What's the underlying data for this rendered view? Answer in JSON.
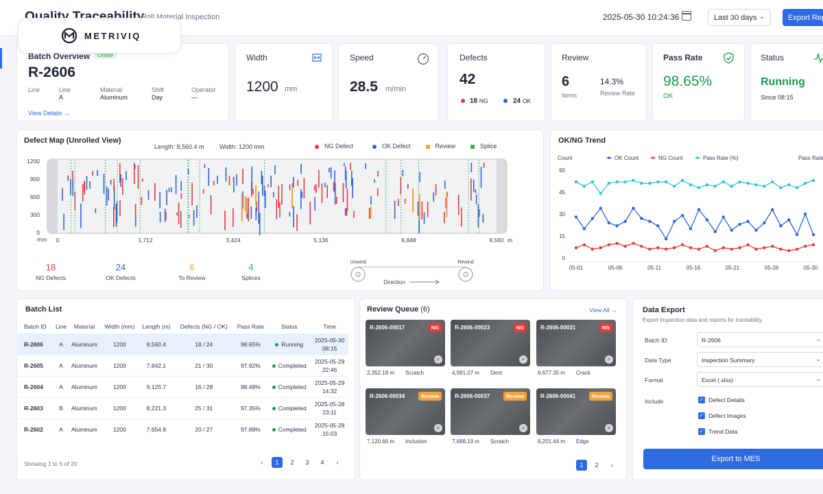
{
  "header": {
    "title": "Quality Traceability",
    "subtitle": "Roll Material Inspection",
    "datetime": "2025-05-30 10:24:36",
    "range": "Last 30 days",
    "export": "Export Report"
  },
  "brand": {
    "name": "METRIVIQ",
    "icon": "m-logo-icon"
  },
  "batch_overview": {
    "title": "Batch Overview",
    "status_badge": "Online",
    "batch": "R-2606",
    "line_label": "Line",
    "fields": [
      {
        "label": "Line",
        "value": "A"
      },
      {
        "label": "Material",
        "value": "Aluminum"
      },
      {
        "label": "Shift",
        "value": "Day"
      },
      {
        "label": "Operator",
        "value": "—"
      }
    ],
    "link": "View Details →"
  },
  "kpis": {
    "width": {
      "title": "Width",
      "value": "1200",
      "unit": "mm"
    },
    "speed": {
      "title": "Speed",
      "value": "28.5",
      "unit": "m/min"
    },
    "defects": {
      "title": "Defects",
      "value": "42",
      "ng": "18",
      "ng_label": "NG",
      "ok": "24",
      "ok_label": "OK"
    },
    "review": {
      "title": "Review",
      "items": "6",
      "items_label": "Items",
      "rate": "14.3%",
      "rate_label": "Review Rate"
    },
    "pass": {
      "title": "Pass Rate",
      "value": "98.65%",
      "label": "OK"
    },
    "status": {
      "title": "Status",
      "value": "Running",
      "since": "Since 08:15"
    }
  },
  "defect_map": {
    "title": "Defect Map (Unrolled View)",
    "length": "Length: 8,560.4 m",
    "width": "Width: 1200 mm",
    "legend": [
      {
        "label": "NG Defect",
        "color": "#e23b3b"
      },
      {
        "label": "OK Defect",
        "color": "#2f64d8"
      },
      {
        "label": "Review",
        "color": "#f2a23a"
      },
      {
        "label": "Splice",
        "color": "#3cab58"
      }
    ],
    "y_ticks": [
      "1200",
      "900",
      "600",
      "300",
      "0"
    ],
    "y_unit": "mm",
    "x_ticks": [
      "0",
      "1,712",
      "3,424",
      "5,136",
      "6,848",
      "8,560"
    ],
    "x_unit": "m",
    "summary": [
      {
        "value": "18",
        "label": "NG Defects",
        "color": "#e23b3b"
      },
      {
        "value": "24",
        "label": "OK Defects",
        "color": "#2f64d8"
      },
      {
        "value": "6",
        "label": "To Review",
        "color": "#f2a23a"
      },
      {
        "value": "4",
        "label": "Splices",
        "color": "#3cab58"
      }
    ],
    "unwind": "Unwind",
    "rewind": "Rewind",
    "direction": "Direction"
  },
  "chart_data": {
    "type": "line",
    "title": "OK/NG Trend",
    "ylabel": "Count",
    "y2label": "Pass Rate",
    "ylim": [
      0,
      60
    ],
    "y_ticks": [
      "60",
      "45",
      "30",
      "15",
      "0"
    ],
    "x_ticks": [
      "05-01",
      "05-06",
      "05-11",
      "05-16",
      "05-21",
      "05-26",
      "05-30"
    ],
    "x": [
      1,
      2,
      3,
      4,
      5,
      6,
      7,
      8,
      9,
      10,
      11,
      12,
      13,
      14,
      15,
      16,
      17,
      18,
      19,
      20,
      21,
      22,
      23,
      24,
      25,
      26,
      27,
      28,
      29,
      30
    ],
    "series": [
      {
        "name": "OK Count",
        "color": "#2f64d8",
        "values": [
          28,
          20,
          27,
          34,
          24,
          22,
          25,
          34,
          27,
          25,
          22,
          13,
          25,
          29,
          20,
          33,
          26,
          18,
          28,
          19,
          23,
          25,
          19,
          24,
          33,
          22,
          26,
          16,
          30,
          16
        ]
      },
      {
        "name": "NG Count",
        "color": "#e23b3b",
        "values": [
          7,
          9,
          6,
          7,
          9,
          10,
          8,
          10,
          8,
          6,
          7,
          6,
          7,
          9,
          7,
          6,
          8,
          5,
          7,
          6,
          7,
          9,
          6,
          7,
          8,
          6,
          5,
          6,
          8,
          9
        ]
      },
      {
        "name": "Pass Rate (%)",
        "color": "#2ec4d6",
        "values": [
          52,
          49,
          52,
          44,
          51,
          52,
          52,
          53,
          51,
          51,
          52,
          52,
          49,
          53,
          50,
          48,
          50,
          49,
          52,
          49,
          52,
          51,
          50,
          49,
          52,
          48,
          50,
          48,
          51,
          53
        ]
      }
    ]
  },
  "batch_list": {
    "title": "Batch List",
    "columns": [
      "Batch ID",
      "Line",
      "Material",
      "Width (mm)",
      "Length (m)",
      "Defects (NG / OK)",
      "Pass Rate",
      "Status",
      "Time"
    ],
    "rows": [
      {
        "id": "R-2606",
        "line": "A",
        "material": "Aluminum",
        "width": "1200",
        "length": "8,560.4",
        "defects": "18 / 24",
        "pass": "98.65%",
        "status": "Running",
        "date": "2025-05-30",
        "time": "08:15"
      },
      {
        "id": "R-2605",
        "line": "A",
        "material": "Aluminum",
        "width": "1200",
        "length": "7,842.1",
        "defects": "21 / 30",
        "pass": "97.92%",
        "status": "Completed",
        "date": "2025-05-29",
        "time": "22:46"
      },
      {
        "id": "R-2604",
        "line": "A",
        "material": "Aluminum",
        "width": "1200",
        "length": "9,125.7",
        "defects": "16 / 28",
        "pass": "98.48%",
        "status": "Completed",
        "date": "2025-05-29",
        "time": "14:32"
      },
      {
        "id": "R-2603",
        "line": "B",
        "material": "Aluminum",
        "width": "1200",
        "length": "8,221.3",
        "defects": "25 / 31",
        "pass": "97.35%",
        "status": "Completed",
        "date": "2025-05-28",
        "time": "23:11"
      },
      {
        "id": "R-2602",
        "line": "A",
        "material": "Aluminum",
        "width": "1200",
        "length": "7,654.8",
        "defects": "20 / 27",
        "pass": "97.88%",
        "status": "Completed",
        "date": "2025-05-28",
        "time": "15:03"
      }
    ],
    "showing": "Showing 1 to 5 of 20",
    "pages": [
      "1",
      "2",
      "3",
      "4"
    ]
  },
  "review_queue": {
    "title": "Review Queue",
    "count": "(6)",
    "view_all": "View All →",
    "items": [
      {
        "id": "R-2606-00017",
        "badge": "NG",
        "pos": "2,352.18 m",
        "type": "Scratch"
      },
      {
        "id": "R-2606-00023",
        "badge": "NG",
        "pos": "4,991.07 m",
        "type": "Dent"
      },
      {
        "id": "R-2606-00031",
        "badge": "NG",
        "pos": "6,677.35 m",
        "type": "Crack"
      },
      {
        "id": "R-2606-00034",
        "badge": "Review",
        "pos": "7,120.66 m",
        "type": "Inclusion"
      },
      {
        "id": "R-2606-00037",
        "badge": "Review",
        "pos": "7,688.19 m",
        "type": "Scratch"
      },
      {
        "id": "R-2606-00041",
        "badge": "Review",
        "pos": "8,201.44 m",
        "type": "Edge"
      }
    ],
    "pages": [
      "1",
      "2"
    ]
  },
  "data_export": {
    "title": "Data Export",
    "desc": "Export inspection data and reports for traceability.",
    "batch_label": "Batch ID",
    "batch_value": "R-2606",
    "type_label": "Data Type",
    "type_value": "Inspection Summary",
    "format_label": "Format",
    "format_value": "Excel (.xlsx)",
    "include_label": "Include",
    "include": [
      "Defect Details",
      "Defect Images",
      "Trend Data"
    ],
    "button": "Export to MES"
  }
}
